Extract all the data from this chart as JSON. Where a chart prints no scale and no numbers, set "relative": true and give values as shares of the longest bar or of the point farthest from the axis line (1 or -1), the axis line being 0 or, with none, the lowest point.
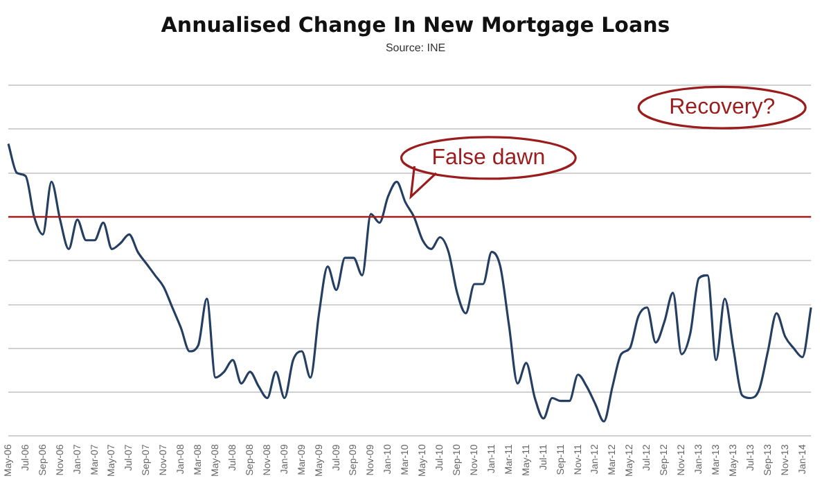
{
  "chart_data": {
    "type": "line",
    "title": "Annualised Change In New Mortgage Loans",
    "subtitle": "Source: INE",
    "relative": true,
    "grid": "y",
    "legend": false,
    "marker": "none",
    "categories": [
      "May-06",
      null,
      "Jul-06",
      null,
      "Sep-06",
      null,
      "Nov-06",
      null,
      "Jan-07",
      null,
      "Mar-07",
      null,
      "May-07",
      null,
      "Jul-07",
      null,
      "Sep-07",
      null,
      "Nov-07",
      null,
      "Jan-08",
      null,
      "Mar-08",
      null,
      "May-08",
      null,
      "Jul-08",
      null,
      "Sep-08",
      null,
      "Nov-08",
      null,
      "Jan-09",
      null,
      "Mar-09",
      null,
      "May-09",
      null,
      "Jul-09",
      null,
      "Sep-09",
      null,
      "Nov-09",
      null,
      "Jan-10",
      null,
      "Mar-10",
      null,
      "May-10",
      null,
      "Jul-10",
      null,
      "Sep-10",
      null,
      "Nov-10",
      null,
      "Jan-11",
      null,
      "Mar-11",
      null,
      "May-11",
      null,
      "Jul-11",
      null,
      "Sep-11",
      null,
      "Nov-11",
      null,
      "Jan-12",
      null,
      "Mar-12",
      null,
      "May-12",
      null,
      "Jul-12",
      null,
      "Sep-12",
      null,
      "Nov-12",
      null,
      "Jan-13",
      null,
      "Mar-13",
      null,
      "May-13",
      null,
      "Jul-13",
      null,
      "Sep-13",
      null,
      "Nov-13",
      null,
      "Jan-14",
      null
    ],
    "series": [
      {
        "color": "#253f63",
        "values": [
          1.0,
          0.9,
          0.89,
          0.75,
          0.69,
          0.87,
          0.74,
          0.64,
          0.74,
          0.67,
          0.67,
          0.73,
          0.64,
          0.66,
          0.69,
          0.63,
          0.59,
          0.55,
          0.51,
          0.44,
          0.37,
          0.29,
          0.31,
          0.47,
          0.2,
          0.22,
          0.26,
          0.18,
          0.22,
          0.17,
          0.13,
          0.22,
          0.13,
          0.26,
          0.29,
          0.2,
          0.42,
          0.58,
          0.5,
          0.61,
          0.61,
          0.55,
          0.76,
          0.73,
          0.82,
          0.87,
          0.8,
          0.75,
          0.67,
          0.64,
          0.68,
          0.63,
          0.49,
          0.42,
          0.52,
          0.52,
          0.63,
          0.58,
          0.38,
          0.18,
          0.25,
          0.13,
          0.06,
          0.13,
          0.12,
          0.12,
          0.21,
          0.17,
          0.11,
          0.05,
          0.17,
          0.28,
          0.3,
          0.41,
          0.44,
          0.32,
          0.39,
          0.49,
          0.28,
          0.35,
          0.54,
          0.55,
          0.26,
          0.47,
          0.3,
          0.14,
          0.13,
          0.16,
          0.29,
          0.42,
          0.34,
          0.3,
          0.27,
          0.44
        ]
      }
    ],
    "ref_lines": [
      {
        "axis": "y",
        "value": 0.75,
        "color": "#a01e1e"
      }
    ],
    "annotations": [
      {
        "text": "False dawn",
        "x": "Mar-10",
        "y": 0.8
      },
      "Recovery?"
    ]
  }
}
